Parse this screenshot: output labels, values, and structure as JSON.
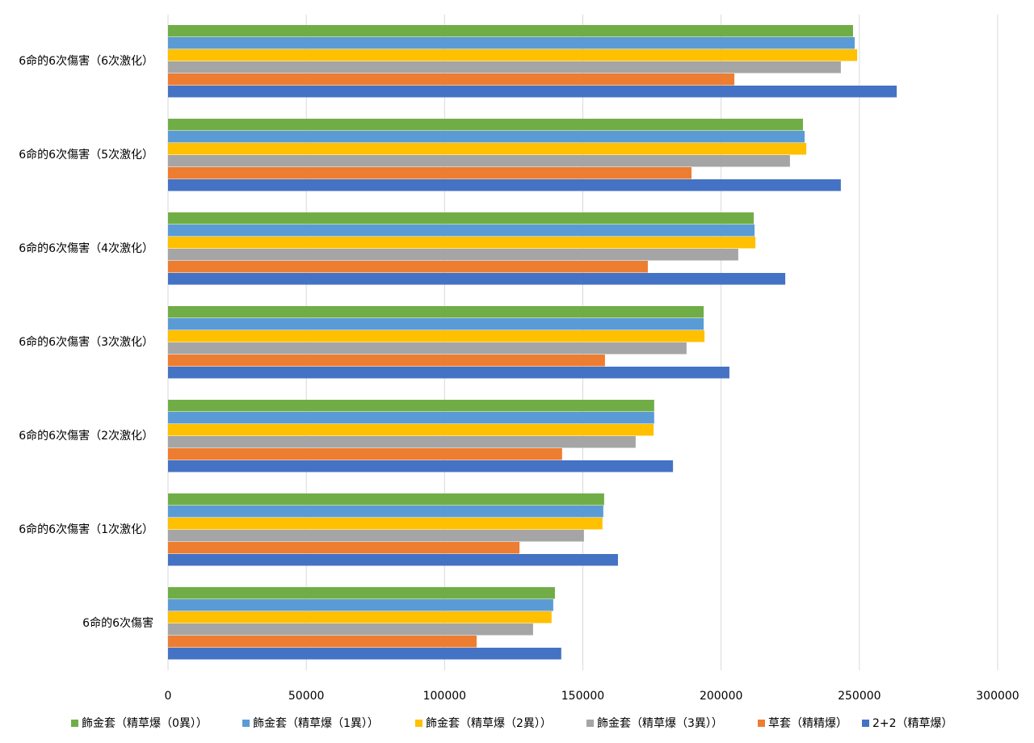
{
  "chart_data": {
    "type": "bar",
    "orientation": "horizontal",
    "categories": [
      "6命的6次傷害",
      "6命的6次傷害（1次激化）",
      "6命的6次傷害（2次激化）",
      "6命的6次傷害（3次激化）",
      "6命的6次傷害（4次激化）",
      "6命的6次傷害（5次激化）",
      "6命的6次傷害（6次激化）"
    ],
    "series": [
      {
        "name": "飾金套（精草爆（0異））",
        "color": "#70ad47",
        "values": [
          139900,
          157700,
          175800,
          193700,
          211800,
          229600,
          247700
        ]
      },
      {
        "name": "飾金套（精草爆（1異））",
        "color": "#5b9bd5",
        "values": [
          139300,
          157400,
          175800,
          193700,
          212100,
          230200,
          248300
        ]
      },
      {
        "name": "飾金套（精草爆（2異））",
        "color": "#ffc000",
        "values": [
          138700,
          157100,
          175600,
          194000,
          212400,
          230800,
          249200
        ]
      },
      {
        "name": "飾金套（精草爆（3異））",
        "color": "#a5a5a5",
        "values": [
          132000,
          150400,
          169100,
          187500,
          206200,
          224900,
          243300
        ]
      },
      {
        "name": "草套（精精爆）",
        "color": "#ed7d31",
        "values": [
          111600,
          127100,
          142500,
          158000,
          173500,
          189300,
          204800
        ]
      },
      {
        "name": "2+2（精草爆）",
        "color": "#4472c4",
        "values": [
          142200,
          162700,
          182600,
          203000,
          223200,
          243300,
          263500
        ]
      }
    ],
    "xlim": [
      0,
      300000
    ],
    "xticks": [
      0,
      50000,
      100000,
      150000,
      200000,
      250000,
      300000
    ],
    "grid": true,
    "legend": "bottom"
  }
}
